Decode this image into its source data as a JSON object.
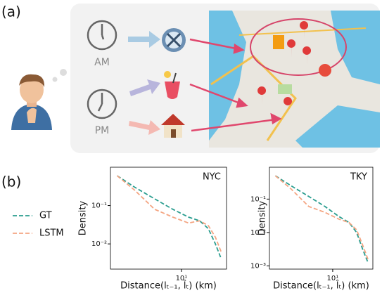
{
  "panel_a": {
    "label": "(a)",
    "times": [
      "AM",
      "PM"
    ]
  },
  "panel_b": {
    "label": "(b)"
  },
  "chart_data": [
    {
      "type": "line",
      "title": "NYC",
      "xlabel": "Distance(lₜ₋₁, l̂ₜ) (km)",
      "ylabel": "Density",
      "xscale": "log",
      "yscale": "log",
      "xlim": [
        1.6,
        32
      ],
      "ylim": [
        0.0022,
        1
      ],
      "xticks": [
        {
          "value": 10,
          "label": "10¹"
        }
      ],
      "yticks": [
        {
          "value": 0.1,
          "label": "10⁻¹"
        },
        {
          "value": 0.01,
          "label": "10⁻²"
        }
      ],
      "x": [
        1.9,
        3,
        5,
        8,
        12,
        16,
        20,
        24,
        28
      ],
      "series": [
        {
          "name": "GT",
          "color": "#2a9d8f",
          "values": [
            0.6,
            0.3,
            0.15,
            0.08,
            0.05,
            0.04,
            0.025,
            0.01,
            0.004
          ]
        },
        {
          "name": "LSTM",
          "color": "#f4a582",
          "values": [
            0.6,
            0.25,
            0.08,
            0.05,
            0.035,
            0.04,
            0.03,
            0.015,
            0.006
          ]
        }
      ]
    },
    {
      "type": "line",
      "title": "TKY",
      "xlabel": "Distance(lₜ₋₁, l̂ₜ) (km)",
      "ylabel": "Density",
      "xscale": "log",
      "yscale": "log",
      "xlim": [
        1.6,
        32
      ],
      "ylim": [
        0.0008,
        0.9
      ],
      "xticks": [
        {
          "value": 10,
          "label": "10¹"
        }
      ],
      "yticks": [
        {
          "value": 0.1,
          "label": "10⁻¹"
        },
        {
          "value": 0.01,
          "label": "10⁻²"
        },
        {
          "value": 0.001,
          "label": "10⁻³"
        }
      ],
      "x": [
        1.9,
        3,
        5,
        8,
        12,
        16,
        20,
        24,
        28
      ],
      "series": [
        {
          "color": "#2a9d8f",
          "values": [
            0.5,
            0.25,
            0.12,
            0.06,
            0.03,
            0.02,
            0.01,
            0.003,
            0.0012
          ]
        },
        {
          "color": "#f4a582",
          "values": [
            0.5,
            0.2,
            0.06,
            0.04,
            0.025,
            0.02,
            0.012,
            0.004,
            0.0015
          ]
        }
      ]
    }
  ]
}
